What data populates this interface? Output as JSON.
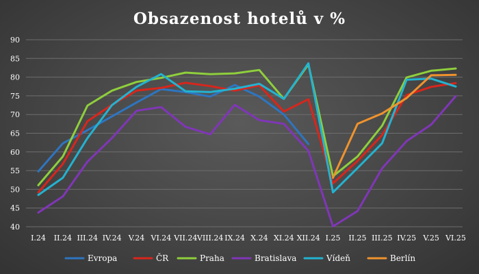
{
  "chart_data": {
    "type": "line",
    "title": "Obsazenost hotelů v %",
    "xlabel": "",
    "ylabel": "",
    "ylim": [
      40,
      90
    ],
    "yticks": [
      40,
      45,
      50,
      55,
      60,
      65,
      70,
      75,
      80,
      85,
      90
    ],
    "grid": true,
    "legend_position": "bottom",
    "categories": [
      "I.24",
      "II.24",
      "III.24",
      "IV.24",
      "V.24",
      "VI.24",
      "VII.24",
      "VIII.24",
      "IX.24",
      "X.24",
      "XI.24",
      "XII.24",
      "I.25",
      "II.25",
      "III.25",
      "IV.25",
      "V.25",
      "VI.25"
    ],
    "series": [
      {
        "name": "Evropa",
        "color": "#2e75c0",
        "values": [
          54.8,
          62.3,
          65.8,
          69.5,
          73.2,
          76.8,
          76.0,
          74.8,
          77.9,
          74.8,
          70.0,
          62.1,
          null,
          null,
          null,
          null,
          null,
          null
        ]
      },
      {
        "name": "ČR",
        "color": "#d8261c",
        "values": [
          49.2,
          56.8,
          68.2,
          72.6,
          76.4,
          77.1,
          78.5,
          77.6,
          76.4,
          77.8,
          70.8,
          74.1,
          51.6,
          57.6,
          64.5,
          75.2,
          77.4,
          78.4
        ]
      },
      {
        "name": "Praha",
        "color": "#8fcf3c",
        "values": [
          51.1,
          58.8,
          72.4,
          76.4,
          78.7,
          79.8,
          81.2,
          80.8,
          81.0,
          81.9,
          74.2,
          83.4,
          53.5,
          58.8,
          67.0,
          79.9,
          81.7,
          82.3
        ]
      },
      {
        "name": "Bratislava",
        "color": "#8036b8",
        "values": [
          43.8,
          48.1,
          57.4,
          63.7,
          71.0,
          72.0,
          66.7,
          64.7,
          72.6,
          68.5,
          67.5,
          60.3,
          40.1,
          44.2,
          55.6,
          62.9,
          67.3,
          74.9
        ]
      },
      {
        "name": "Vídeň",
        "color": "#23b3d1",
        "values": [
          48.5,
          53.1,
          63.7,
          72.5,
          77.4,
          80.8,
          76.2,
          76.0,
          76.9,
          78.2,
          74.2,
          83.7,
          49.2,
          55.7,
          62.3,
          79.3,
          79.6,
          77.5
        ]
      },
      {
        "name": "Berlín",
        "color": "#f0932d",
        "values": [
          null,
          null,
          null,
          null,
          null,
          null,
          null,
          null,
          null,
          null,
          null,
          null,
          53.1,
          67.5,
          70.3,
          74.4,
          80.5,
          80.6
        ]
      }
    ]
  }
}
